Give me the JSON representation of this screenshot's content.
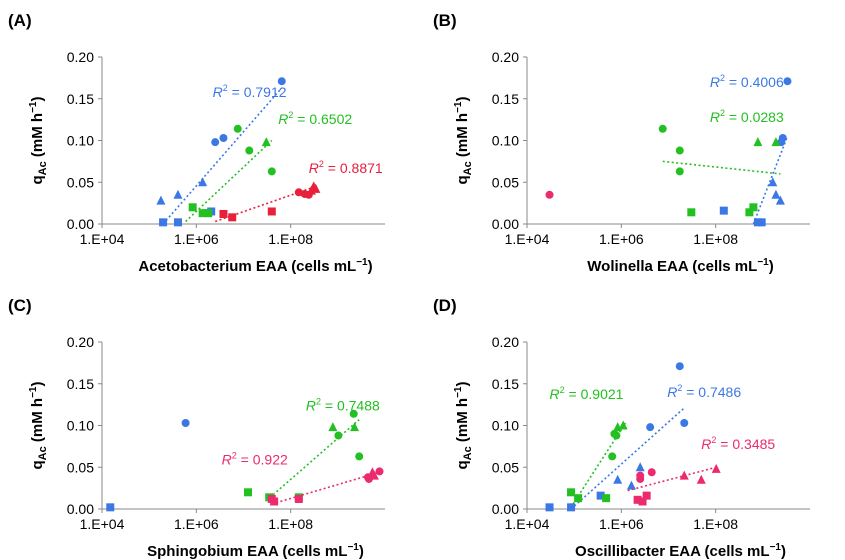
{
  "colors": {
    "blue": "#3b78e6",
    "green": "#22c020",
    "pink": "#ec2a6f",
    "red": "#e8203c"
  },
  "shared": {
    "ylabel_main": "q",
    "ylabel_sub": "Ac",
    "ylabel_unit": " (mM h",
    "ylabel_exp": "−1",
    "ylabel_close": ")",
    "x_unit": "(cells mL",
    "x_exp": "−1",
    "x_close": ")"
  },
  "chart_data": [
    {
      "panel": "(A)",
      "type": "scatter",
      "xscale": "log",
      "xlim": [
        10000,
        1000000000
      ],
      "ylim": [
        0,
        0.2
      ],
      "xticks": [
        "1.E+04",
        "1.E+06",
        "1.E+08"
      ],
      "yticks": [
        "0.00",
        "0.05",
        "0.10",
        "0.15",
        "0.20"
      ],
      "xlabel": "Acetobacterium EAA",
      "series": [
        {
          "color": "blue",
          "points": [
            {
              "x": 120000,
              "y": 0.002,
              "m": "square"
            },
            {
              "x": 220000,
              "y": 0.002,
              "m": "square"
            },
            {
              "x": 850000,
              "y": 0.015,
              "m": "square"
            },
            {
              "x": 110000,
              "y": 0.028,
              "m": "triangle"
            },
            {
              "x": 220000,
              "y": 0.035,
              "m": "triangle"
            },
            {
              "x": 600000,
              "y": 0.05,
              "m": "triangle"
            },
            {
              "x": 1000000,
              "y": 0.098,
              "m": "circle"
            },
            {
              "x": 1400000,
              "y": 0.103,
              "m": "circle"
            },
            {
              "x": 15000000,
              "y": 0.171,
              "m": "circle"
            }
          ],
          "fit": {
            "x": [
              120000,
              15000000
            ],
            "y": [
              0.0,
              0.163
            ]
          },
          "r2": "0.7912"
        },
        {
          "color": "green",
          "points": [
            {
              "x": 400000,
              "y": 0.02,
              "m": "square"
            },
            {
              "x": 600000,
              "y": 0.013,
              "m": "square"
            },
            {
              "x": 750000,
              "y": 0.013,
              "m": "square"
            },
            {
              "x": 8000000,
              "y": 0.098,
              "m": "triangle"
            },
            {
              "x": 2500000,
              "y": 0.114,
              "m": "circle"
            },
            {
              "x": 4000000,
              "y": 0.088,
              "m": "circle"
            },
            {
              "x": 10000000,
              "y": 0.063,
              "m": "circle"
            }
          ],
          "fit": {
            "x": [
              300000,
              10000000
            ],
            "y": [
              0.003,
              0.1
            ]
          },
          "r2": "0.6502"
        },
        {
          "color": "red",
          "points": [
            {
              "x": 10000000,
              "y": 0.015,
              "m": "square"
            },
            {
              "x": 1400000,
              "y": 0.012,
              "m": "square"
            },
            {
              "x": 2000000,
              "y": 0.008,
              "m": "square"
            },
            {
              "x": 30000000,
              "y": 0.038,
              "m": "circle"
            },
            {
              "x": 38000000,
              "y": 0.036,
              "m": "circle"
            },
            {
              "x": 45000000,
              "y": 0.035,
              "m": "circle"
            },
            {
              "x": 50000000,
              "y": 0.04,
              "m": "triangle"
            },
            {
              "x": 55000000,
              "y": 0.045,
              "m": "triangle"
            },
            {
              "x": 60000000,
              "y": 0.042,
              "m": "triangle"
            }
          ],
          "fit": {
            "x": [
              1000000,
              60000000
            ],
            "y": [
              0.003,
              0.045
            ]
          },
          "r2": "0.8871"
        }
      ],
      "labels": [
        {
          "color": "blue",
          "text": "0.7912",
          "x": 900000,
          "y": 0.158
        },
        {
          "color": "green",
          "text": "0.6502",
          "x": 13000000,
          "y": 0.126
        },
        {
          "color": "red",
          "text": "0.8871",
          "x": 45000000,
          "y": 0.067
        }
      ]
    },
    {
      "panel": "(B)",
      "type": "scatter",
      "xscale": "log",
      "xlim": [
        10000,
        1000000000
      ],
      "ylim": [
        0,
        0.2
      ],
      "xticks": [
        "1.E+04",
        "1.E+06",
        "1.E+08"
      ],
      "yticks": [
        "0.00",
        "0.05",
        "0.10",
        "0.15",
        "0.20"
      ],
      "xlabel": "Wolinella EAA",
      "series": [
        {
          "color": "blue",
          "points": [
            {
              "x": 30000000,
              "y": 0.016,
              "m": "square"
            },
            {
              "x": 120000000,
              "y": 0.002,
              "m": "square"
            },
            {
              "x": 140000000,
              "y": 0.002,
              "m": "square"
            },
            {
              "x": 220000000,
              "y": 0.05,
              "m": "triangle"
            },
            {
              "x": 250000000,
              "y": 0.035,
              "m": "triangle"
            },
            {
              "x": 300000000,
              "y": 0.028,
              "m": "triangle"
            },
            {
              "x": 310000000,
              "y": 0.098,
              "m": "circle"
            },
            {
              "x": 330000000,
              "y": 0.103,
              "m": "circle"
            },
            {
              "x": 400000000,
              "y": 0.171,
              "m": "circle"
            }
          ],
          "fit": {
            "x": [
              100000000,
              400000000
            ],
            "y": [
              0.0,
              0.105
            ]
          },
          "r2": "0.4006"
        },
        {
          "color": "green",
          "points": [
            {
              "x": 8000000,
              "y": 0.014,
              "m": "square"
            },
            {
              "x": 85000000,
              "y": 0.014,
              "m": "square"
            },
            {
              "x": 100000000,
              "y": 0.02,
              "m": "square"
            },
            {
              "x": 120000000,
              "y": 0.098,
              "m": "triangle"
            },
            {
              "x": 250000000,
              "y": 0.098,
              "m": "triangle"
            },
            {
              "x": 2500000,
              "y": 0.114,
              "m": "circle"
            },
            {
              "x": 5000000,
              "y": 0.088,
              "m": "circle"
            },
            {
              "x": 5000000,
              "y": 0.063,
              "m": "circle"
            }
          ],
          "fit": {
            "x": [
              2500000,
              300000000
            ],
            "y": [
              0.075,
              0.06
            ]
          },
          "r2": "0.0283"
        },
        {
          "color": "pink",
          "points": [
            {
              "x": 25000,
              "y": 0.035,
              "m": "circle"
            }
          ]
        }
      ],
      "labels": [
        {
          "color": "blue",
          "text": "0.4006",
          "x": 17000000,
          "y": 0.17
        },
        {
          "color": "green",
          "text": "0.0283",
          "x": 17000000,
          "y": 0.128
        }
      ]
    },
    {
      "panel": "(C)",
      "type": "scatter",
      "xscale": "log",
      "xlim": [
        10000,
        1000000000
      ],
      "ylim": [
        0,
        0.2
      ],
      "xticks": [
        "1.E+04",
        "1.E+06",
        "1.E+08"
      ],
      "yticks": [
        "0.00",
        "0.05",
        "0.10",
        "0.15",
        "0.20"
      ],
      "xlabel": "Sphingobium EAA",
      "series": [
        {
          "color": "blue",
          "points": [
            {
              "x": 14000,
              "y": 0.002,
              "m": "square"
            },
            {
              "x": 300000,
              "y": 0.103,
              "m": "circle"
            }
          ]
        },
        {
          "color": "green",
          "points": [
            {
              "x": 3800000,
              "y": 0.02,
              "m": "square"
            },
            {
              "x": 9000000,
              "y": 0.014,
              "m": "square"
            },
            {
              "x": 30000000,
              "y": 0.014,
              "m": "square"
            },
            {
              "x": 120000000,
              "y": 0.098,
              "m": "triangle"
            },
            {
              "x": 290000000,
              "y": 0.098,
              "m": "triangle"
            },
            {
              "x": 280000000,
              "y": 0.114,
              "m": "circle"
            },
            {
              "x": 150000000,
              "y": 0.088,
              "m": "circle"
            },
            {
              "x": 350000000,
              "y": 0.063,
              "m": "circle"
            }
          ],
          "fit": {
            "x": [
              8000000,
              350000000
            ],
            "y": [
              0.01,
              0.107
            ]
          },
          "r2": "0.7488"
        },
        {
          "color": "pink",
          "points": [
            {
              "x": 10000000,
              "y": 0.012,
              "m": "square"
            },
            {
              "x": 11000000,
              "y": 0.009,
              "m": "square"
            },
            {
              "x": 30000000,
              "y": 0.012,
              "m": "square"
            },
            {
              "x": 500000000,
              "y": 0.038,
              "m": "circle"
            },
            {
              "x": 520000000,
              "y": 0.036,
              "m": "circle"
            },
            {
              "x": 800000000,
              "y": 0.045,
              "m": "circle"
            },
            {
              "x": 600000000,
              "y": 0.044,
              "m": "triangle"
            },
            {
              "x": 650000000,
              "y": 0.04,
              "m": "triangle"
            }
          ],
          "fit": {
            "x": [
              10000000,
              900000000
            ],
            "y": [
              0.006,
              0.045
            ]
          },
          "r2": "0.922"
        }
      ],
      "labels": [
        {
          "color": "green",
          "text": "0.7488",
          "x": 40000000,
          "y": 0.124
        },
        {
          "color": "pink",
          "text": "0.922",
          "x": 1300000,
          "y": 0.059
        }
      ]
    },
    {
      "panel": "(D)",
      "type": "scatter",
      "xscale": "log",
      "xlim": [
        10000,
        1000000000
      ],
      "ylim": [
        0,
        0.2
      ],
      "xticks": [
        "1.E+04",
        "1.E+06",
        "1.E+08"
      ],
      "yticks": [
        "0.00",
        "0.05",
        "0.10",
        "0.15",
        "0.20"
      ],
      "xlabel": "Oscillibacter EAA",
      "series": [
        {
          "color": "blue",
          "points": [
            {
              "x": 25000,
              "y": 0.002,
              "m": "square"
            },
            {
              "x": 60000,
              "y": 0.002,
              "m": "square"
            },
            {
              "x": 200000,
              "y": 0.016,
              "m": "square"
            },
            {
              "x": 700000,
              "y": 0.028,
              "m": "triangle"
            },
            {
              "x": 1000000,
              "y": 0.05,
              "m": "triangle"
            },
            {
              "x": 400000,
              "y": 0.035,
              "m": "triangle"
            },
            {
              "x": 1500000,
              "y": 0.098,
              "m": "circle"
            },
            {
              "x": 5000000,
              "y": 0.171,
              "m": "circle"
            },
            {
              "x": 6000000,
              "y": 0.103,
              "m": "circle"
            }
          ],
          "fit": {
            "x": [
              60000,
              6000000
            ],
            "y": [
              0.0,
              0.121
            ]
          },
          "r2": "0.7486"
        },
        {
          "color": "green",
          "points": [
            {
              "x": 60000,
              "y": 0.02,
              "m": "square"
            },
            {
              "x": 80000,
              "y": 0.013,
              "m": "square"
            },
            {
              "x": 250000,
              "y": 0.013,
              "m": "square"
            },
            {
              "x": 400000,
              "y": 0.098,
              "m": "triangle"
            },
            {
              "x": 500000,
              "y": 0.1,
              "m": "triangle"
            },
            {
              "x": 380000,
              "y": 0.088,
              "m": "circle"
            },
            {
              "x": 320000,
              "y": 0.063,
              "m": "circle"
            },
            {
              "x": 350000,
              "y": 0.09,
              "m": "circle"
            }
          ],
          "fit": {
            "x": [
              65000,
              550000
            ],
            "y": [
              0.006,
              0.103
            ]
          },
          "r2": "0.9021"
        },
        {
          "color": "pink",
          "points": [
            {
              "x": 900000,
              "y": 0.011,
              "m": "square"
            },
            {
              "x": 1100000,
              "y": 0.009,
              "m": "square"
            },
            {
              "x": 1300000,
              "y": 0.016,
              "m": "square"
            },
            {
              "x": 1000000,
              "y": 0.036,
              "m": "circle"
            },
            {
              "x": 1000000,
              "y": 0.04,
              "m": "circle"
            },
            {
              "x": 1600000,
              "y": 0.044,
              "m": "circle"
            },
            {
              "x": 6000000,
              "y": 0.04,
              "m": "triangle"
            },
            {
              "x": 12000000,
              "y": 0.035,
              "m": "triangle"
            },
            {
              "x": 22000000,
              "y": 0.048,
              "m": "triangle"
            }
          ],
          "fit": {
            "x": [
              600000,
              22000000
            ],
            "y": [
              0.022,
              0.05
            ]
          },
          "r2": "0.3485"
        }
      ],
      "labels": [
        {
          "color": "green",
          "text": "0.9021",
          "x": 25000,
          "y": 0.138
        },
        {
          "color": "blue",
          "text": "0.7486",
          "x": 3000000,
          "y": 0.14
        },
        {
          "color": "pink",
          "text": "0.3485",
          "x": 12000000,
          "y": 0.078
        }
      ]
    }
  ]
}
